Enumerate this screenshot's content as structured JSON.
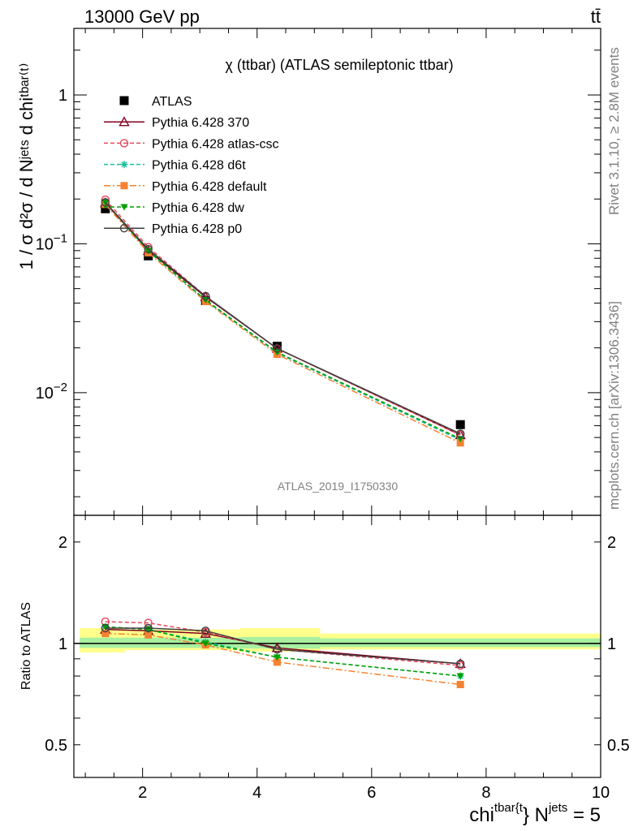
{
  "header": {
    "energy": "13000 GeV pp",
    "process": "tt̄"
  },
  "side_text": {
    "rivet": "Rivet 3.1.10, ≥ 2.8M events",
    "mcplots": "mcplots.cern.ch [arXiv:1306.3436]"
  },
  "chart_data": [
    {
      "type": "line",
      "title": "χ (ttbar) (ATLAS semileptonic ttbar)",
      "watermark": "ATLAS_2019_I1750330",
      "ylabel": "1 / σ d²σ / d Nʲᵉᵗˢ d chiᵗᵇᵃʳ⁽ᵗ⁾",
      "yscale": "log",
      "xlim": [
        0.8,
        10.0
      ],
      "ylim": [
        0.0015,
        2.8
      ],
      "x_ticks": [
        2,
        4,
        6,
        8,
        10
      ],
      "y_ticks": [
        {
          "value": 0.01,
          "label": "10^-2"
        },
        {
          "value": 0.1,
          "label": "10^-1"
        },
        {
          "value": 1,
          "label": "1"
        }
      ],
      "legend_position": "top-left",
      "x": [
        1.35,
        2.1,
        3.1,
        4.35,
        7.55
      ],
      "series": [
        {
          "name": "ATLAS",
          "color": "#000000",
          "marker": "square",
          "dash": "none",
          "values": [
            0.172,
            0.083,
            0.0415,
            0.0205,
            0.0061
          ]
        },
        {
          "name": "Pythia 6.428 370",
          "color": "#800020",
          "marker": "triangle-open",
          "dash": "solid",
          "values": [
            0.188,
            0.09,
            0.044,
            0.0198,
            0.0052
          ]
        },
        {
          "name": "Pythia 6.428 atlas-csc",
          "color": "#e8475b",
          "marker": "circle-open",
          "dash": "dash",
          "values": [
            0.198,
            0.095,
            0.0445,
            0.0198,
            0.0052
          ]
        },
        {
          "name": "Pythia 6.428 d6t",
          "color": "#1abc9c",
          "marker": "star",
          "dash": "dash",
          "values": [
            0.19,
            0.089,
            0.0415,
            0.0185,
            0.0048
          ]
        },
        {
          "name": "Pythia 6.428 default",
          "color": "#f58231",
          "marker": "square",
          "dash": "dashdot",
          "values": [
            0.184,
            0.087,
            0.041,
            0.0181,
            0.0046
          ]
        },
        {
          "name": "Pythia 6.428 dw",
          "color": "#00a000",
          "marker": "triangle-down",
          "dash": "dash",
          "values": [
            0.19,
            0.09,
            0.042,
            0.0187,
            0.0049
          ]
        },
        {
          "name": "Pythia 6.428 p0",
          "color": "#404040",
          "marker": "circle-open",
          "dash": "solid",
          "values": [
            0.19,
            0.092,
            0.0445,
            0.0198,
            0.0053
          ]
        }
      ]
    },
    {
      "type": "line",
      "ylabel": "Ratio to ATLAS",
      "xlabel_main": "chi",
      "xlabel_sup": "tbar{t",
      "xlabel_tail": "} N",
      "xlabel_sup2": "jets",
      "xlabel_end": " = 5",
      "yscale": "log",
      "xlim": [
        0.8,
        10.0
      ],
      "ylim": [
        0.4,
        2.4
      ],
      "x_ticks": [
        2,
        4,
        6,
        8,
        10
      ],
      "y_ticks": [
        {
          "value": 0.5,
          "label": "0.5"
        },
        {
          "value": 1,
          "label": "1"
        },
        {
          "value": 2,
          "label": "2"
        }
      ],
      "bands": [
        {
          "x0": 0.9,
          "x1": 1.7,
          "inner": [
            0.97,
            1.04
          ],
          "outer": [
            0.94,
            1.11
          ]
        },
        {
          "x0": 1.7,
          "x1": 3.7,
          "inner": [
            0.97,
            1.04
          ],
          "outer": [
            0.955,
            1.1
          ]
        },
        {
          "x0": 3.7,
          "x1": 5.1,
          "inner": [
            0.965,
            1.045
          ],
          "outer": [
            0.945,
            1.11
          ]
        },
        {
          "x0": 5.1,
          "x1": 10.0,
          "inner": [
            0.975,
            1.035
          ],
          "outer": [
            0.96,
            1.07
          ]
        }
      ],
      "x": [
        1.35,
        2.1,
        3.1,
        4.35,
        7.55
      ],
      "series": [
        {
          "name": "Pythia 6.428 370",
          "color": "#800020",
          "marker": "triangle-open",
          "dash": "solid",
          "values": [
            1.1,
            1.09,
            1.07,
            0.97,
            0.87
          ]
        },
        {
          "name": "Pythia 6.428 atlas-csc",
          "color": "#e8475b",
          "marker": "circle-open",
          "dash": "dash",
          "values": [
            1.16,
            1.15,
            1.08,
            0.96,
            0.86
          ]
        },
        {
          "name": "Pythia 6.428 d6t",
          "color": "#1abc9c",
          "marker": "star",
          "dash": "dash",
          "values": [
            1.12,
            1.1,
            1.01,
            0.91,
            0.8
          ]
        },
        {
          "name": "Pythia 6.428 default",
          "color": "#f58231",
          "marker": "square",
          "dash": "dashdot",
          "values": [
            1.07,
            1.06,
            0.99,
            0.88,
            0.755
          ]
        },
        {
          "name": "Pythia 6.428 dw",
          "color": "#00a000",
          "marker": "triangle-down",
          "dash": "dash",
          "values": [
            1.12,
            1.1,
            1.0,
            0.91,
            0.8
          ]
        },
        {
          "name": "Pythia 6.428 p0",
          "color": "#404040",
          "marker": "circle-open",
          "dash": "solid",
          "values": [
            1.11,
            1.11,
            1.09,
            0.96,
            0.87
          ]
        }
      ]
    }
  ]
}
